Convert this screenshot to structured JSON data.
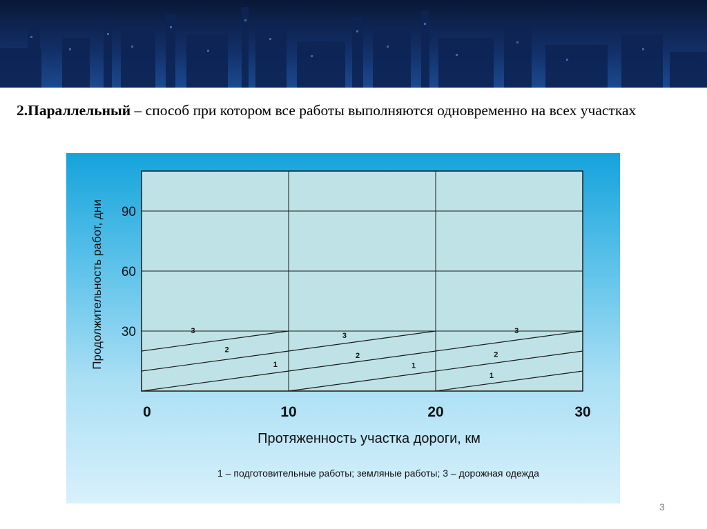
{
  "heading": {
    "bold": "2.Параллельный",
    "rest": " – способ при котором все работы выполняются одновременно на всех участках"
  },
  "page_number": "3",
  "colors": {
    "banner_dark": "#0b1a3c",
    "panel_top": "#15a3dc",
    "panel_bottom": "#d8f1fb",
    "plot_fill": "#bfe2e6",
    "line": "#1a1a1a"
  },
  "chart_data": {
    "type": "line",
    "xlabel": "Протяженность участка дороги, км",
    "ylabel": "Продолжительность работ, дни",
    "xlim": [
      0,
      30
    ],
    "ylim": [
      0,
      110
    ],
    "x_ticks": [
      "0",
      "10",
      "20",
      "30"
    ],
    "y_ticks": [
      "30",
      "60",
      "90"
    ],
    "grid": true,
    "legend_text": "1 – подготовительные работы; земляные работы; 3 – дорожная одежда",
    "series": [
      {
        "name": "1",
        "segments": [
          [
            [
              0,
              0
            ],
            [
              10,
              10
            ]
          ],
          [
            [
              10,
              0
            ],
            [
              20,
              10
            ]
          ],
          [
            [
              20,
              0
            ],
            [
              30,
              10
            ]
          ]
        ]
      },
      {
        "name": "2",
        "segments": [
          [
            [
              0,
              10
            ],
            [
              10,
              20
            ]
          ],
          [
            [
              10,
              10
            ],
            [
              20,
              20
            ]
          ],
          [
            [
              20,
              10
            ],
            [
              30,
              20
            ]
          ]
        ]
      },
      {
        "name": "3",
        "segments": [
          [
            [
              0,
              20
            ],
            [
              10,
              30
            ]
          ],
          [
            [
              10,
              20
            ],
            [
              20,
              30
            ]
          ],
          [
            [
              20,
              20
            ],
            [
              30,
              30
            ]
          ]
        ]
      }
    ],
    "labels": [
      {
        "text": "3",
        "x": 3.5,
        "y": 29
      },
      {
        "text": "2",
        "x": 5.8,
        "y": 19.5
      },
      {
        "text": "1",
        "x": 9.1,
        "y": 12
      },
      {
        "text": "3",
        "x": 13.8,
        "y": 26.5
      },
      {
        "text": "2",
        "x": 14.7,
        "y": 16.5
      },
      {
        "text": "1",
        "x": 18.5,
        "y": 11.5
      },
      {
        "text": "3",
        "x": 25.5,
        "y": 29
      },
      {
        "text": "2",
        "x": 24.1,
        "y": 17
      },
      {
        "text": "1",
        "x": 23.8,
        "y": 6.5
      }
    ]
  }
}
